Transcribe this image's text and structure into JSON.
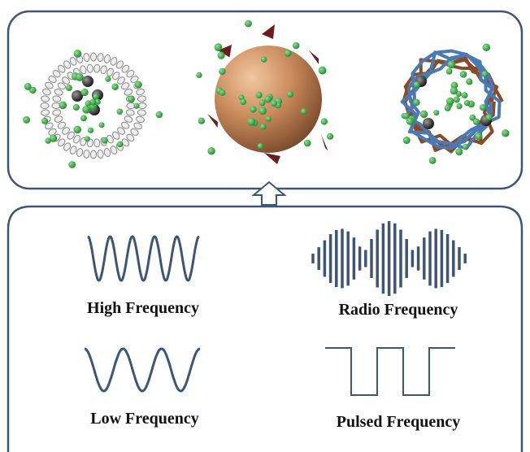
{
  "labels": {
    "high": "High Frequency",
    "radio": "Radio Frequency",
    "low": "Low Frequency",
    "pulsed": "Pulsed Frequency"
  }
}
